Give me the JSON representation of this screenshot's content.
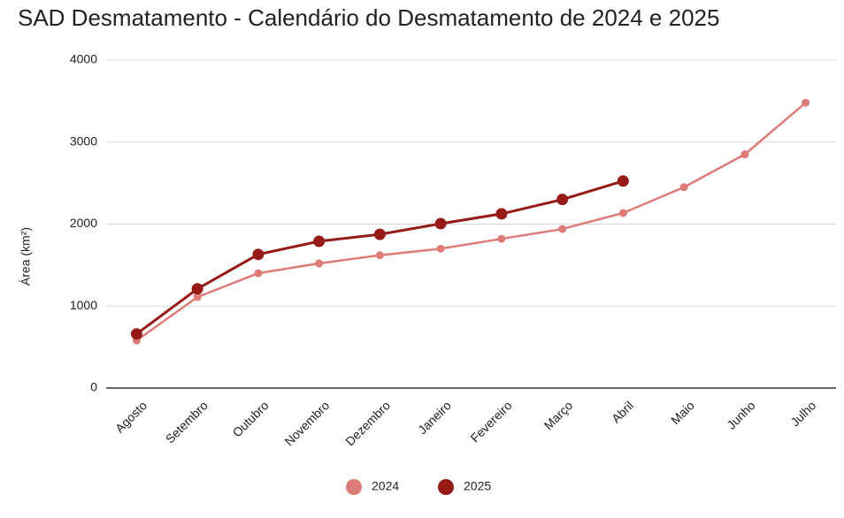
{
  "chart_data": {
    "type": "line",
    "title": "SAD Desmatamento - Calendário do Desmatamento de 2024 e 2025",
    "y_label": "Área (km²)",
    "categories": [
      "Agosto",
      "Setembro",
      "Outubro",
      "Novembro",
      "Dezembro",
      "Janeiro",
      "Fevereiro",
      "Março",
      "Abril",
      "Maio",
      "Junho",
      "Julho"
    ],
    "series": [
      {
        "name": "2024",
        "color": "#de7b78",
        "values": [
          580,
          1110,
          1400,
          1520,
          1620,
          1700,
          1820,
          1940,
          2135,
          2450,
          2850,
          3480
        ]
      },
      {
        "name": "2025",
        "color": "#961b17",
        "values": [
          660,
          1210,
          1630,
          1790,
          1875,
          2005,
          2125,
          2300,
          2525,
          null,
          null,
          null
        ]
      }
    ],
    "ylim": [
      0,
      4000
    ],
    "yticks": [
      0,
      1000,
      2000,
      3000,
      4000
    ],
    "grid": true,
    "legend": "bottom"
  }
}
